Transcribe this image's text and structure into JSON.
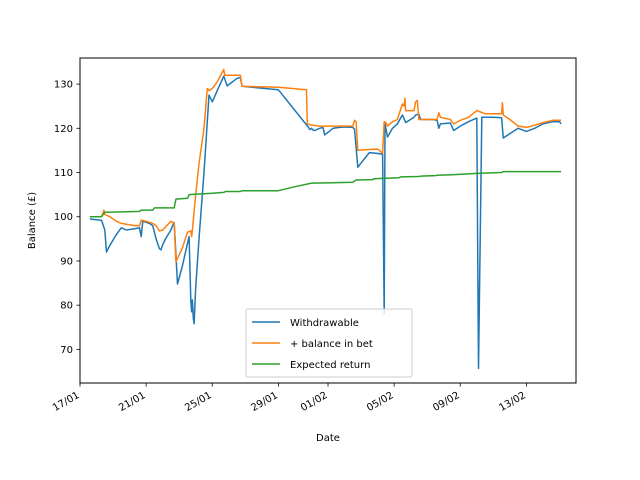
{
  "chart_data": {
    "type": "line",
    "xlabel": "Date",
    "ylabel": "Balance (£)",
    "xlim": [
      0,
      30
    ],
    "ylim": [
      62.4,
      135.9
    ],
    "x_ticks": [
      {
        "label": "17/01",
        "day": 0
      },
      {
        "label": "21/01",
        "day": 4
      },
      {
        "label": "25/01",
        "day": 8
      },
      {
        "label": "29/01",
        "day": 12
      },
      {
        "label": "01/02",
        "day": 15
      },
      {
        "label": "05/02",
        "day": 19
      },
      {
        "label": "09/02",
        "day": 23
      },
      {
        "label": "13/02",
        "day": 27
      }
    ],
    "y_ticks": [
      70,
      80,
      90,
      100,
      110,
      120,
      130
    ],
    "legend_position": "lower center",
    "series": [
      {
        "name": "Withdrawable",
        "color": "#1f77b4",
        "points": [
          [
            0.6,
            99.5
          ],
          [
            1.0,
            99.3
          ],
          [
            1.3,
            99.2
          ],
          [
            1.5,
            97.0
          ],
          [
            1.6,
            92.0
          ],
          [
            1.8,
            93.5
          ],
          [
            2.2,
            96.0
          ],
          [
            2.5,
            97.5
          ],
          [
            2.8,
            97.0
          ],
          [
            3.3,
            97.3
          ],
          [
            3.6,
            97.5
          ],
          [
            3.7,
            95.5
          ],
          [
            3.8,
            99.0
          ],
          [
            4.2,
            98.5
          ],
          [
            4.4,
            98.0
          ],
          [
            4.6,
            95.0
          ],
          [
            4.8,
            92.8
          ],
          [
            4.9,
            92.5
          ],
          [
            5.0,
            93.7
          ],
          [
            5.2,
            95.2
          ],
          [
            5.5,
            97.0
          ],
          [
            5.6,
            98.0
          ],
          [
            5.7,
            98.7
          ],
          [
            5.9,
            84.8
          ],
          [
            6.2,
            89.0
          ],
          [
            6.5,
            94.0
          ],
          [
            6.6,
            95.5
          ],
          [
            6.7,
            81.2
          ],
          [
            6.75,
            78.5
          ],
          [
            6.8,
            81.2
          ],
          [
            6.85,
            77.0
          ],
          [
            6.9,
            75.8
          ],
          [
            7.0,
            84.0
          ],
          [
            7.2,
            95.0
          ],
          [
            7.5,
            110.0
          ],
          [
            7.8,
            127.5
          ],
          [
            8.0,
            126.0
          ],
          [
            8.3,
            128.5
          ],
          [
            8.7,
            131.8
          ],
          [
            8.9,
            129.6
          ],
          [
            9.5,
            131.3
          ],
          [
            9.7,
            131.5
          ],
          [
            9.8,
            129.5
          ],
          [
            12.0,
            128.7
          ],
          [
            13.8,
            120.3
          ],
          [
            13.9,
            119.7
          ],
          [
            14.0,
            120.0
          ],
          [
            14.1,
            119.6
          ],
          [
            14.2,
            119.5
          ],
          [
            14.5,
            120.0
          ],
          [
            14.7,
            120.2
          ],
          [
            14.8,
            118.5
          ],
          [
            15.3,
            120.0
          ],
          [
            15.7,
            120.2
          ],
          [
            16.0,
            120.3
          ],
          [
            16.5,
            120.2
          ],
          [
            16.6,
            119.8
          ],
          [
            16.8,
            111.2
          ],
          [
            17.5,
            114.5
          ],
          [
            18.3,
            114.2
          ],
          [
            18.4,
            78.0
          ],
          [
            18.45,
            121.0
          ],
          [
            18.6,
            118.0
          ],
          [
            18.9,
            120.0
          ],
          [
            19.2,
            121.0
          ],
          [
            19.5,
            123.0
          ],
          [
            19.7,
            121.3
          ],
          [
            20.2,
            122.5
          ],
          [
            20.3,
            123.0
          ],
          [
            20.5,
            123.2
          ],
          [
            20.6,
            122.0
          ],
          [
            21.3,
            122.0
          ],
          [
            21.6,
            121.8
          ],
          [
            21.7,
            120.0
          ],
          [
            21.8,
            121.0
          ],
          [
            22.4,
            121.2
          ],
          [
            22.6,
            119.5
          ],
          [
            23.0,
            120.5
          ],
          [
            23.5,
            121.5
          ],
          [
            24.0,
            122.3
          ],
          [
            24.1,
            65.7
          ],
          [
            24.3,
            122.5
          ],
          [
            25.0,
            122.5
          ],
          [
            25.5,
            122.4
          ],
          [
            25.6,
            117.8
          ],
          [
            26.0,
            118.8
          ],
          [
            26.5,
            120.0
          ],
          [
            27.0,
            119.3
          ],
          [
            27.5,
            120.0
          ],
          [
            28.0,
            121.0
          ],
          [
            28.6,
            121.5
          ],
          [
            29.0,
            121.5
          ],
          [
            29.1,
            121.0
          ]
        ]
      },
      {
        "name": "+ balance in bet",
        "color": "#ff7f0e",
        "points": [
          [
            0.6,
            100.0
          ],
          [
            1.0,
            100.0
          ],
          [
            1.3,
            100.0
          ],
          [
            1.45,
            101.5
          ],
          [
            1.5,
            100.5
          ],
          [
            1.8,
            100.0
          ],
          [
            2.2,
            99.0
          ],
          [
            2.5,
            98.5
          ],
          [
            3.0,
            98.2
          ],
          [
            3.3,
            98.0
          ],
          [
            3.6,
            98.0
          ],
          [
            3.7,
            99.2
          ],
          [
            4.0,
            99.0
          ],
          [
            4.4,
            98.5
          ],
          [
            4.6,
            98.0
          ],
          [
            4.8,
            96.8
          ],
          [
            5.0,
            97.0
          ],
          [
            5.5,
            99.0
          ],
          [
            5.7,
            98.5
          ],
          [
            5.8,
            89.8
          ],
          [
            6.2,
            93.0
          ],
          [
            6.5,
            96.5
          ],
          [
            6.7,
            96.8
          ],
          [
            6.75,
            95.5
          ],
          [
            6.8,
            97.0
          ],
          [
            7.0,
            105.0
          ],
          [
            7.2,
            112.0
          ],
          [
            7.5,
            120.0
          ],
          [
            7.7,
            129.0
          ],
          [
            7.8,
            128.5
          ],
          [
            8.0,
            129.0
          ],
          [
            8.3,
            130.5
          ],
          [
            8.7,
            133.3
          ],
          [
            8.75,
            132.0
          ],
          [
            9.7,
            132.0
          ],
          [
            9.8,
            129.5
          ],
          [
            12.0,
            129.3
          ],
          [
            13.7,
            128.7
          ],
          [
            13.75,
            121.0
          ],
          [
            13.9,
            120.8
          ],
          [
            14.5,
            120.5
          ],
          [
            15.0,
            120.5
          ],
          [
            15.3,
            120.5
          ],
          [
            15.7,
            120.5
          ],
          [
            16.5,
            120.5
          ],
          [
            16.6,
            121.8
          ],
          [
            16.7,
            121.5
          ],
          [
            16.8,
            115.0
          ],
          [
            17.5,
            115.2
          ],
          [
            18.0,
            115.3
          ],
          [
            18.3,
            114.4
          ],
          [
            18.4,
            121.5
          ],
          [
            18.5,
            121.3
          ],
          [
            18.6,
            120.5
          ],
          [
            18.9,
            121.5
          ],
          [
            19.2,
            122.0
          ],
          [
            19.5,
            125.5
          ],
          [
            19.6,
            125.0
          ],
          [
            19.65,
            126.8
          ],
          [
            19.7,
            124.0
          ],
          [
            20.0,
            124.0
          ],
          [
            20.2,
            124.0
          ],
          [
            20.3,
            126.0
          ],
          [
            20.4,
            126.3
          ],
          [
            20.5,
            122.0
          ],
          [
            21.0,
            122.0
          ],
          [
            21.3,
            122.0
          ],
          [
            21.6,
            122.0
          ],
          [
            21.7,
            123.5
          ],
          [
            21.8,
            122.5
          ],
          [
            22.4,
            122.0
          ],
          [
            22.6,
            121.0
          ],
          [
            23.0,
            121.8
          ],
          [
            23.5,
            122.5
          ],
          [
            24.0,
            124.0
          ],
          [
            24.5,
            123.3
          ],
          [
            25.5,
            123.3
          ],
          [
            25.55,
            125.8
          ],
          [
            25.6,
            123.0
          ],
          [
            26.0,
            122.0
          ],
          [
            26.5,
            120.5
          ],
          [
            27.0,
            120.2
          ],
          [
            27.5,
            120.7
          ],
          [
            28.0,
            121.3
          ],
          [
            28.6,
            121.8
          ],
          [
            29.1,
            121.8
          ]
        ]
      },
      {
        "name": "Expected return",
        "color": "#2ca02c",
        "points": [
          [
            0.6,
            100.0
          ],
          [
            1.3,
            100.0
          ],
          [
            1.5,
            101.0
          ],
          [
            3.6,
            101.2
          ],
          [
            3.7,
            101.5
          ],
          [
            4.4,
            101.5
          ],
          [
            4.5,
            102.0
          ],
          [
            5.7,
            102.0
          ],
          [
            5.8,
            104.0
          ],
          [
            6.5,
            104.2
          ],
          [
            6.6,
            105.0
          ],
          [
            8.0,
            105.3
          ],
          [
            8.7,
            105.5
          ],
          [
            8.8,
            105.7
          ],
          [
            9.7,
            105.7
          ],
          [
            9.8,
            105.9
          ],
          [
            11.0,
            105.9
          ],
          [
            12.0,
            105.9
          ],
          [
            13.0,
            106.8
          ],
          [
            14.0,
            107.6
          ],
          [
            15.3,
            107.7
          ],
          [
            16.5,
            107.8
          ],
          [
            16.7,
            108.3
          ],
          [
            17.7,
            108.4
          ],
          [
            17.8,
            108.6
          ],
          [
            19.3,
            108.8
          ],
          [
            19.4,
            109.0
          ],
          [
            20.5,
            109.1
          ],
          [
            20.6,
            109.2
          ],
          [
            21.5,
            109.3
          ],
          [
            21.6,
            109.4
          ],
          [
            22.5,
            109.5
          ],
          [
            23.5,
            109.7
          ],
          [
            24.0,
            109.8
          ],
          [
            25.5,
            110.0
          ],
          [
            25.6,
            110.2
          ],
          [
            29.1,
            110.2
          ]
        ]
      }
    ]
  }
}
